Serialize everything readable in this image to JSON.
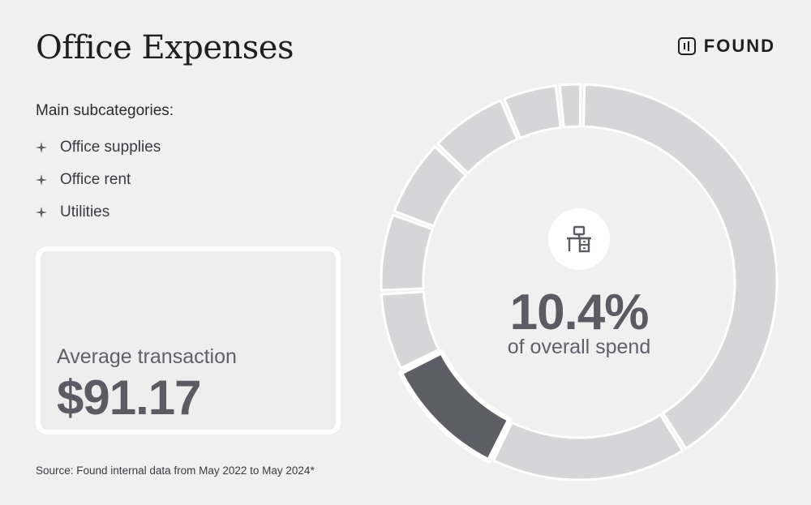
{
  "title": "Office Expenses",
  "brand": {
    "name": "FOUND"
  },
  "subcategories": {
    "heading": "Main subcategories:",
    "items": [
      "Office supplies",
      "Office rent",
      "Utilities"
    ]
  },
  "average_transaction": {
    "label": "Average transaction",
    "value": "$91.17"
  },
  "highlight": {
    "value": "10.4%",
    "caption": "of overall spend",
    "icon": "desk-icon"
  },
  "source": "Source: Found internal data from May 2022 to May 2024*",
  "colors": {
    "highlight": "#5d5e66",
    "muted": "#d6d6d8",
    "background": "#f0f0f1"
  },
  "chart_data": {
    "type": "pie",
    "style": "donut",
    "highlighted_index": 1,
    "segments": [
      {
        "value": 40.8,
        "highlighted": false
      },
      {
        "value": 16.2,
        "highlighted": false
      },
      {
        "value": 10.4,
        "highlighted": true
      },
      {
        "value": 6.5,
        "highlighted": false
      },
      {
        "value": 6.5,
        "highlighted": false
      },
      {
        "value": 6.5,
        "highlighted": false
      },
      {
        "value": 6.5,
        "highlighted": false
      },
      {
        "value": 4.6,
        "highlighted": false
      },
      {
        "value": 2.0,
        "highlighted": false
      }
    ]
  }
}
